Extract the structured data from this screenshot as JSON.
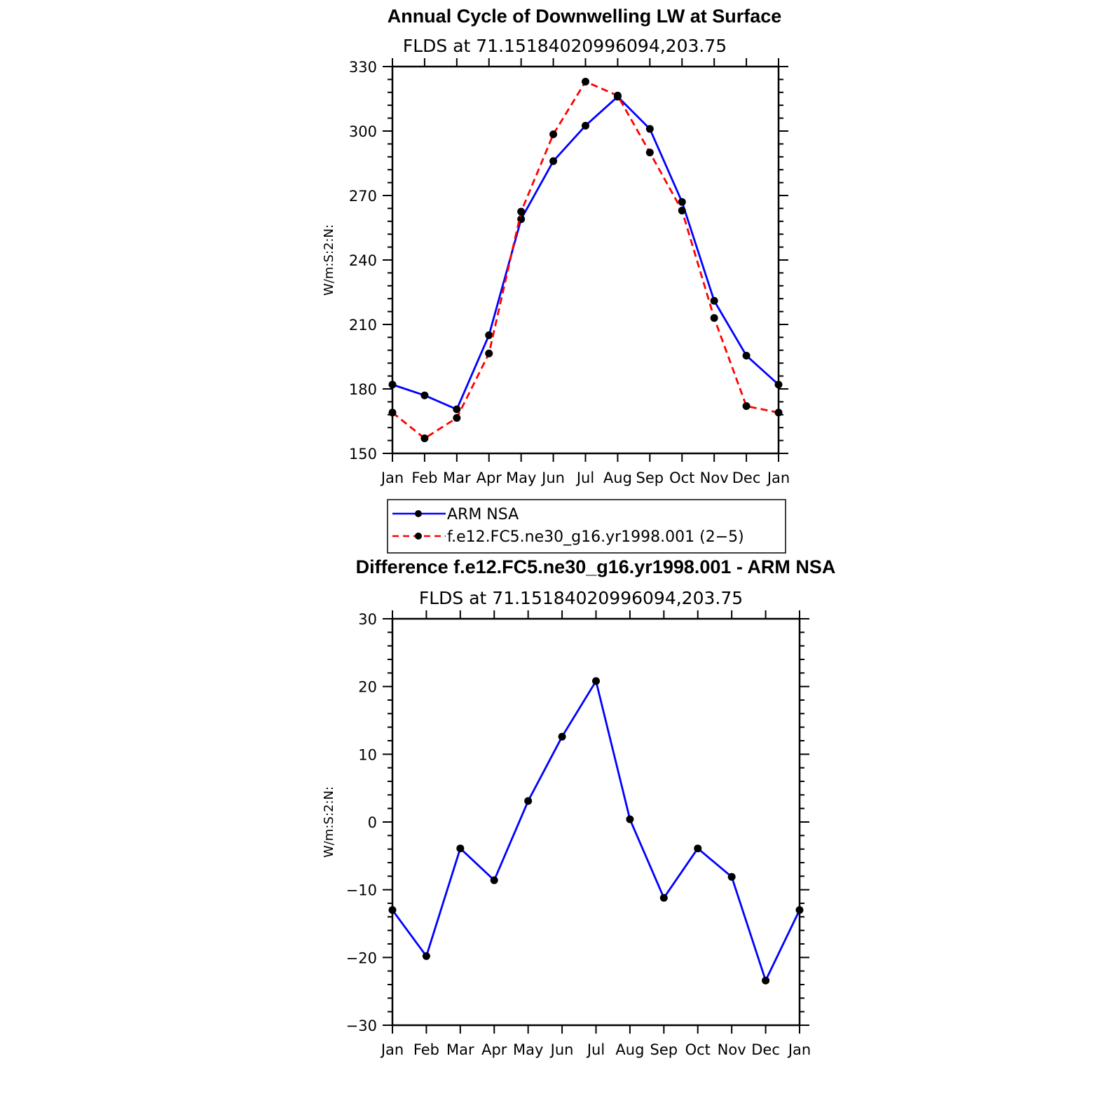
{
  "colors": {
    "arm": "#0000ff",
    "model": "#ff0000",
    "diff": "#0000ff",
    "marker": "#000000"
  },
  "chart_data": [
    {
      "type": "line",
      "title": "Annual Cycle of Downwelling LW at Surface",
      "subtitle": "FLDS at 71.15184020996094,203.75",
      "ylabel": "W/m:S:2:N:",
      "ylim": [
        150,
        330
      ],
      "yticks": [
        "150",
        "180",
        "210",
        "240",
        "270",
        "300",
        "330"
      ],
      "categories": [
        "Jan",
        "Feb",
        "Mar",
        "Apr",
        "May",
        "Jun",
        "Jul",
        "Aug",
        "Sep",
        "Oct",
        "Nov",
        "Dec",
        "Jan"
      ],
      "series": [
        {
          "name": "ARM NSA",
          "style": "solid",
          "values": [
            182,
            177,
            170.5,
            205,
            259,
            286,
            302.5,
            316,
            301,
            267,
            221,
            195.5,
            182
          ]
        },
        {
          "name": "f.e12.FC5.ne30_g16.yr1998.001 (2−5)",
          "style": "dashed",
          "values": [
            169,
            157,
            166.5,
            196.5,
            262.5,
            298.5,
            323,
            316.5,
            290,
            263,
            213,
            172,
            169
          ]
        }
      ],
      "legend": "below"
    },
    {
      "type": "line",
      "title": "Difference f.e12.FC5.ne30_g16.yr1998.001 - ARM NSA",
      "subtitle": "FLDS at 71.15184020996094,203.75",
      "ylabel": "W/m:S:2:N:",
      "ylim": [
        -30,
        30
      ],
      "yticks": [
        "−30",
        "−20",
        "−10",
        "0",
        "10",
        "20",
        "30"
      ],
      "categories": [
        "Jan",
        "Feb",
        "Mar",
        "Apr",
        "May",
        "Jun",
        "Jul",
        "Aug",
        "Sep",
        "Oct",
        "Nov",
        "Dec",
        "Jan"
      ],
      "series": [
        {
          "values": [
            -13,
            -19.8,
            -3.9,
            -8.6,
            3.1,
            12.6,
            20.8,
            0.4,
            -11.2,
            -3.9,
            -8.1,
            -23.4,
            -13
          ]
        }
      ]
    }
  ]
}
